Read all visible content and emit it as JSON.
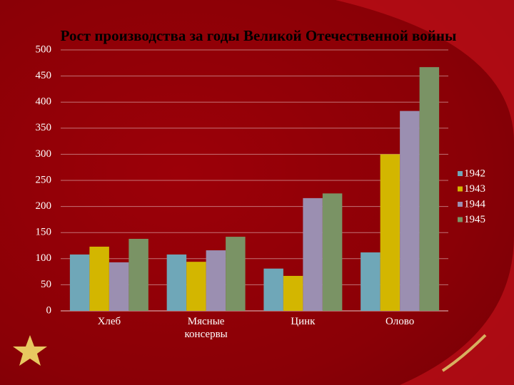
{
  "chart_data": {
    "type": "bar",
    "title": "Рост производства за годы Великой Отечественной войны",
    "categories": [
      "Хлеб",
      "Мясные консервы",
      "Цинк",
      "Олово"
    ],
    "series": [
      {
        "name": "1942",
        "color": "#6fa7b8",
        "values": [
          108,
          108,
          81,
          112
        ]
      },
      {
        "name": "1943",
        "color": "#d3b600",
        "values": [
          123,
          94,
          67,
          300
        ]
      },
      {
        "name": "1944",
        "color": "#9b8fb1",
        "values": [
          93,
          116,
          216,
          383
        ]
      },
      {
        "name": "1945",
        "color": "#7a9365",
        "values": [
          138,
          142,
          225,
          467
        ]
      }
    ],
    "ylim": [
      0,
      500
    ],
    "yticks": [
      0,
      50,
      100,
      150,
      200,
      250,
      300,
      350,
      400,
      450,
      500
    ],
    "grid": true,
    "legend": "right"
  }
}
